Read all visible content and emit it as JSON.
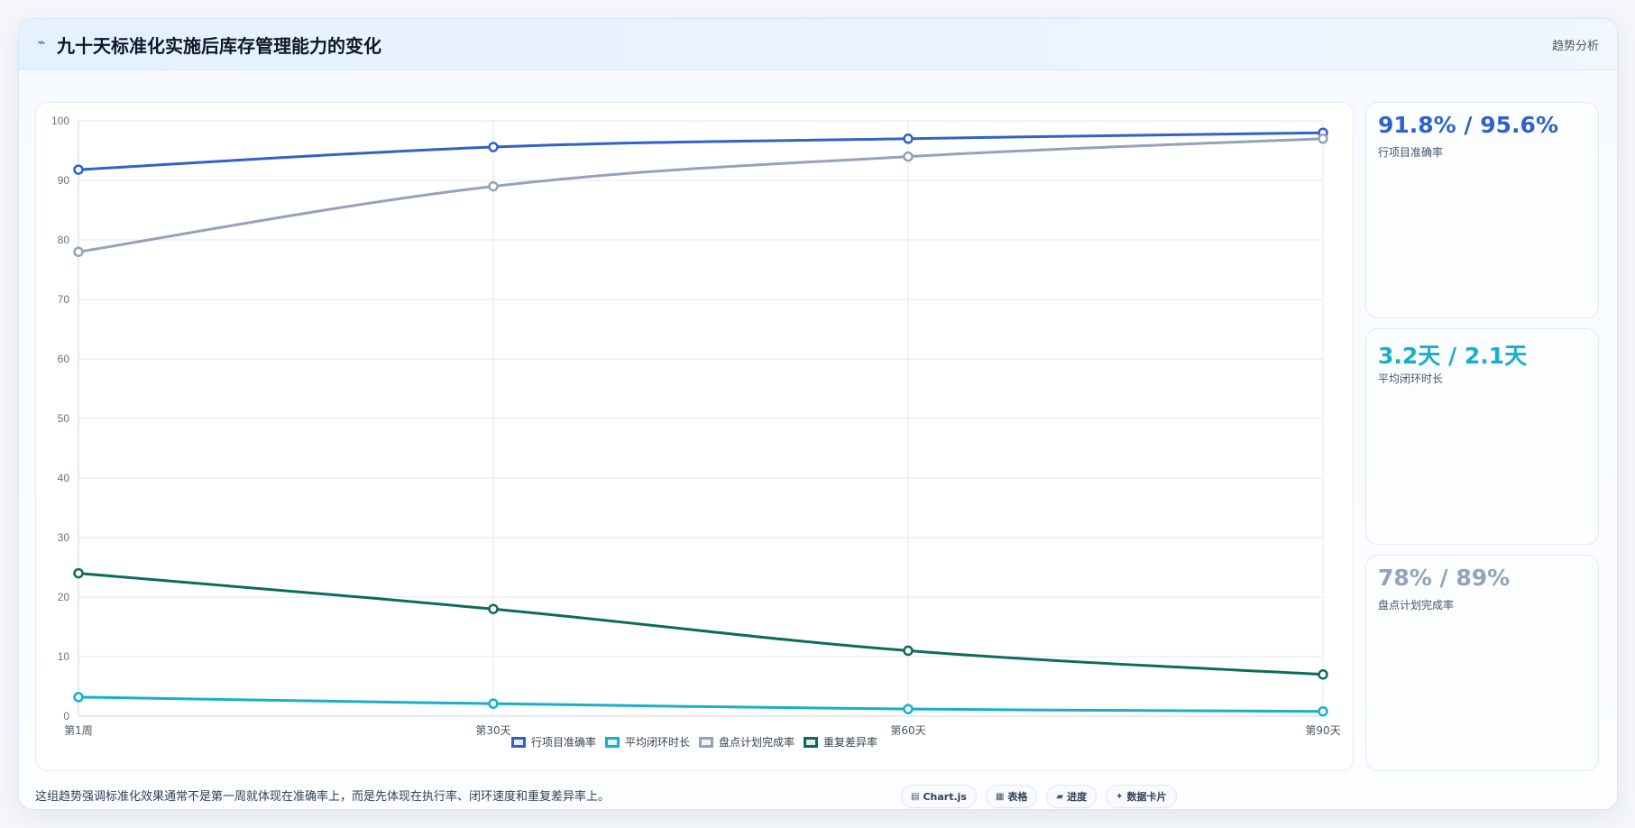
{
  "header": {
    "title": "九十天标准化实施后库存管理能力的变化",
    "tag": "趋势分析"
  },
  "chart_data": {
    "type": "line",
    "categories": [
      "第1周",
      "第30天",
      "第60天",
      "第90天"
    ],
    "ylim": [
      0,
      100
    ],
    "yticks": [
      0,
      10,
      20,
      30,
      40,
      50,
      60,
      70,
      80,
      90,
      100
    ],
    "grid": true,
    "legend_position": "bottom",
    "series": [
      {
        "name": "行项目准确率",
        "values": [
          91.8,
          95.6,
          97.0,
          98.0
        ],
        "color": "#2f62cc"
      },
      {
        "name": "平均闭环时长",
        "values": [
          3.2,
          2.1,
          1.2,
          0.8
        ],
        "color": "#17b0c8"
      },
      {
        "name": "盘点计划完成率",
        "values": [
          78,
          89,
          94,
          97
        ],
        "color": "#94a3b8"
      },
      {
        "name": "重复差异率",
        "values": [
          24,
          18,
          11,
          7
        ],
        "color": "#0e6b5c"
      }
    ]
  },
  "stats": [
    {
      "value": "91.8% / 95.6%",
      "label": "行项目准确率",
      "color": "#2f62cc"
    },
    {
      "value": "3.2天 / 2.1天",
      "label": "平均闭环时长",
      "color": "#17b0c8"
    },
    {
      "value": "78% / 89%",
      "label": "盘点计划完成率",
      "color": "#94a3b8"
    }
  ],
  "footer": {
    "note": "这组趋势强调标准化效果通常不是第一周就体现在准确率上，而是先体现在执行率、闭环速度和重复差异率上。"
  },
  "toolbar": [
    {
      "icon": "chart-icon",
      "glyph": "▤",
      "label": "Chart.js"
    },
    {
      "icon": "table-icon",
      "glyph": "▦",
      "label": "表格"
    },
    {
      "icon": "progress-icon",
      "glyph": "▰",
      "label": "进度"
    },
    {
      "icon": "sparkle-icon",
      "glyph": "✦",
      "label": "数据卡片"
    }
  ]
}
